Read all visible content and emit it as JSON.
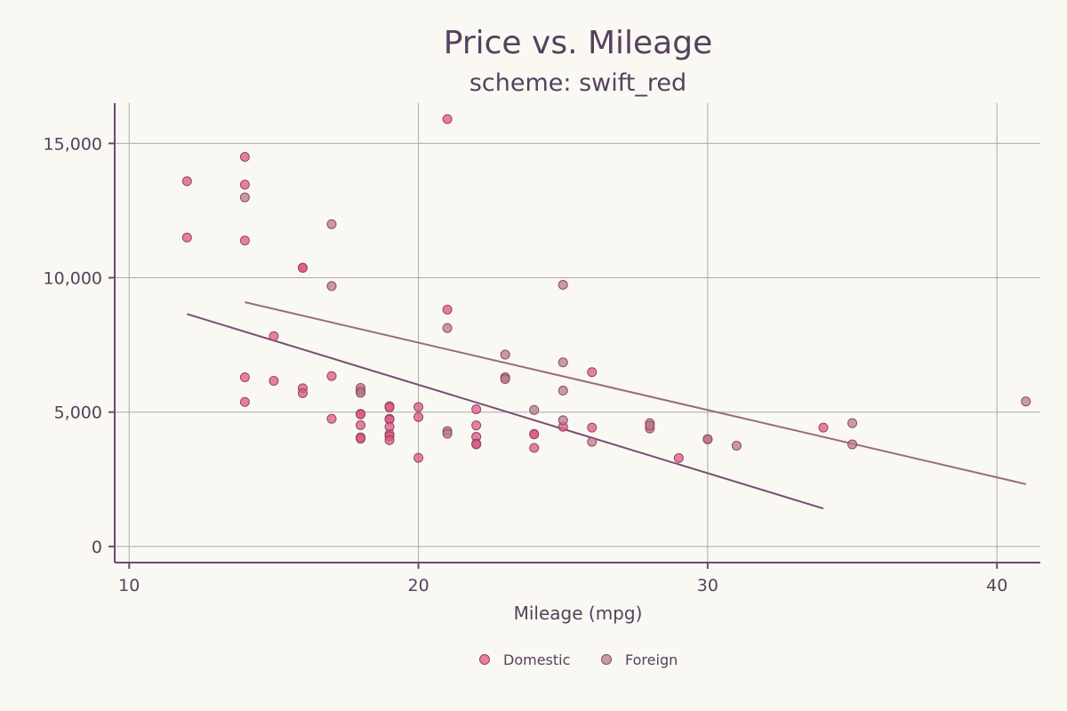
{
  "chart_data": {
    "type": "scatter",
    "title": "Price vs. Mileage",
    "subtitle": "scheme: swift_red",
    "xlabel": "Mileage (mpg)",
    "ylabel": "",
    "xlim": [
      9.5,
      41.5
    ],
    "ylim": [
      -600,
      16500
    ],
    "x_ticks": [
      10,
      20,
      30,
      40
    ],
    "y_ticks": [
      0,
      5000,
      10000,
      15000
    ],
    "x_tick_labels": [
      "10",
      "20",
      "30",
      "40"
    ],
    "y_tick_labels": [
      "0",
      "5,000",
      "10,000",
      "15,000"
    ],
    "grid": true,
    "legend_position": "bottom-center",
    "series": [
      {
        "name": "Domestic",
        "color": "#e05585",
        "points": [
          [
            12,
            13594
          ],
          [
            12,
            11497
          ],
          [
            14,
            14500
          ],
          [
            14,
            13466
          ],
          [
            14,
            11385
          ],
          [
            14,
            6295
          ],
          [
            14,
            5379
          ],
          [
            15,
            7827
          ],
          [
            15,
            6165
          ],
          [
            16,
            10372
          ],
          [
            16,
            10371
          ],
          [
            16,
            5886
          ],
          [
            16,
            5705
          ],
          [
            17,
            6342
          ],
          [
            17,
            4749
          ],
          [
            18,
            5798
          ],
          [
            18,
            4934
          ],
          [
            18,
            4914
          ],
          [
            18,
            4516
          ],
          [
            18,
            4060
          ],
          [
            18,
            4010
          ],
          [
            19,
            5222
          ],
          [
            19,
            5172
          ],
          [
            19,
            4749
          ],
          [
            19,
            4723
          ],
          [
            19,
            4453
          ],
          [
            19,
            4181
          ],
          [
            19,
            4099
          ],
          [
            19,
            3955
          ],
          [
            20,
            5189
          ],
          [
            20,
            4816
          ],
          [
            20,
            3299
          ],
          [
            21,
            15906
          ],
          [
            21,
            8814
          ],
          [
            22,
            5104
          ],
          [
            22,
            4504
          ],
          [
            22,
            4082
          ],
          [
            22,
            3829
          ],
          [
            22,
            3799
          ],
          [
            24,
            4187
          ],
          [
            24,
            4172
          ],
          [
            24,
            3667
          ],
          [
            25,
            4453
          ],
          [
            26,
            6486
          ],
          [
            26,
            4424
          ],
          [
            28,
            4389
          ],
          [
            29,
            3291
          ],
          [
            30,
            3984
          ],
          [
            34,
            4425
          ]
        ],
        "trend": {
          "x": [
            12,
            34
          ],
          "y": [
            8650,
            1410
          ]
        }
      },
      {
        "name": "Foreign",
        "color": "#b87a8e",
        "points": [
          [
            14,
            12990
          ],
          [
            17,
            11995
          ],
          [
            17,
            9690
          ],
          [
            18,
            5899
          ],
          [
            18,
            5719
          ],
          [
            21,
            8129
          ],
          [
            21,
            4296
          ],
          [
            21,
            4195
          ],
          [
            23,
            7140
          ],
          [
            23,
            6295
          ],
          [
            23,
            6229
          ],
          [
            24,
            5079
          ],
          [
            25,
            9735
          ],
          [
            25,
            6850
          ],
          [
            25,
            5799
          ],
          [
            25,
            4697
          ],
          [
            26,
            3895
          ],
          [
            28,
            4589
          ],
          [
            28,
            4499
          ],
          [
            30,
            3995
          ],
          [
            31,
            3748
          ],
          [
            35,
            4589
          ],
          [
            35,
            3798
          ],
          [
            41,
            5397
          ]
        ],
        "trend": {
          "x": [
            14,
            41
          ],
          "y": [
            9090,
            2320
          ]
        }
      }
    ]
  }
}
